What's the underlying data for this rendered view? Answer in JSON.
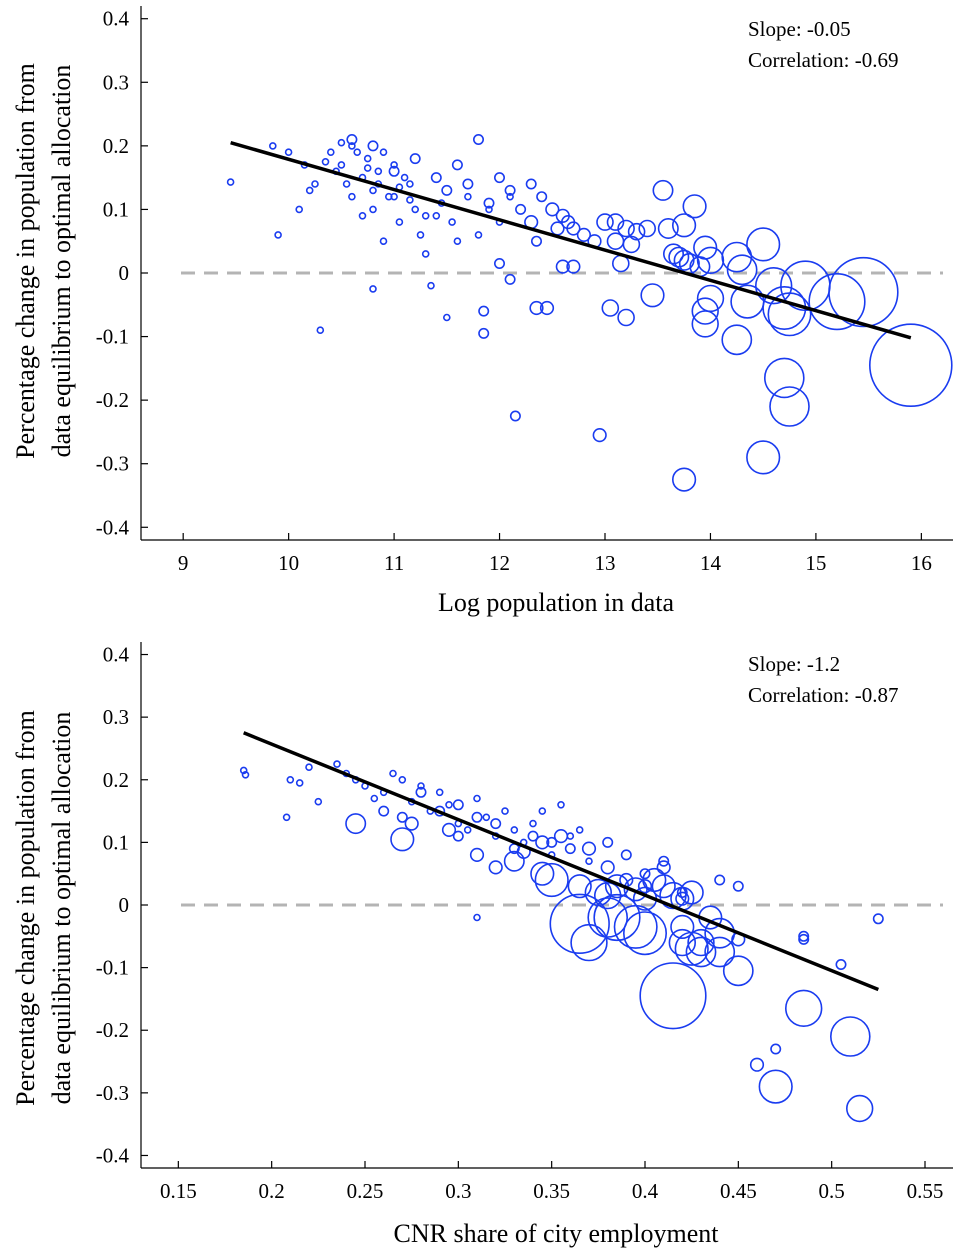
{
  "colors": {
    "points": "#1a3cf0",
    "fit": "#000000",
    "zero": "#b4b4b4"
  },
  "chart_data": [
    {
      "type": "scatter",
      "xlabel": "Log population in data",
      "ylabel_lines": [
        "Percentage change in population from",
        "data equilibrium to optimal allocation"
      ],
      "annotations": [
        "Slope: -0.05",
        "Correlation: -0.69"
      ],
      "xlim": [
        8.6,
        16.3
      ],
      "ylim": [
        -0.42,
        0.42
      ],
      "xticks": [
        9,
        10,
        11,
        12,
        13,
        14,
        15,
        16
      ],
      "xtick_labels": [
        "9",
        "10",
        "11",
        "12",
        "13",
        "14",
        "15",
        "16"
      ],
      "yticks": [
        0.4,
        0.3,
        0.2,
        0.1,
        0,
        -0.1,
        -0.2,
        -0.3,
        -0.4
      ],
      "ytick_labels": [
        "0.4",
        "0.3",
        "0.2",
        "0.1",
        "0",
        "-0.1",
        "-0.2",
        "-0.3",
        "-0.4"
      ],
      "reference_line_y": 0,
      "fit": {
        "x": [
          9.45,
          15.9
        ],
        "y": [
          0.205,
          -0.102
        ]
      },
      "points": [
        [
          9.45,
          0.143,
          1
        ],
        [
          9.9,
          0.06,
          1
        ],
        [
          10.3,
          -0.09,
          1
        ],
        [
          9.85,
          0.2,
          1
        ],
        [
          10.1,
          0.1,
          1
        ],
        [
          10.2,
          0.13,
          1
        ],
        [
          10.4,
          0.19,
          1
        ],
        [
          10.45,
          0.16,
          1
        ],
        [
          10.5,
          0.17,
          1
        ],
        [
          10.55,
          0.14,
          1
        ],
        [
          10.6,
          0.2,
          1
        ],
        [
          10.6,
          0.12,
          1
        ],
        [
          10.7,
          0.15,
          1
        ],
        [
          10.7,
          0.09,
          1
        ],
        [
          10.75,
          0.18,
          1
        ],
        [
          10.8,
          0.13,
          1
        ],
        [
          10.8,
          0.1,
          1
        ],
        [
          10.85,
          0.16,
          1
        ],
        [
          10.9,
          0.19,
          1
        ],
        [
          10.9,
          0.05,
          1
        ],
        [
          11.0,
          0.17,
          1
        ],
        [
          11.0,
          0.12,
          1
        ],
        [
          11.05,
          0.08,
          1
        ],
        [
          11.1,
          0.15,
          1
        ],
        [
          11.15,
          0.14,
          1
        ],
        [
          11.2,
          0.1,
          1
        ],
        [
          11.25,
          0.06,
          1
        ],
        [
          11.3,
          0.03,
          1
        ],
        [
          11.35,
          -0.02,
          1
        ],
        [
          11.4,
          0.09,
          1
        ],
        [
          10.8,
          -0.025,
          1
        ],
        [
          10.0,
          0.19,
          1
        ],
        [
          10.15,
          0.17,
          1
        ],
        [
          10.25,
          0.14,
          1
        ],
        [
          10.35,
          0.175,
          1
        ],
        [
          10.5,
          0.205,
          1
        ],
        [
          10.65,
          0.19,
          1
        ],
        [
          10.75,
          0.165,
          1
        ],
        [
          10.85,
          0.14,
          1
        ],
        [
          10.95,
          0.12,
          1
        ],
        [
          11.05,
          0.135,
          1
        ],
        [
          11.15,
          0.115,
          1
        ],
        [
          11.3,
          0.09,
          1
        ],
        [
          11.45,
          0.11,
          1
        ],
        [
          11.55,
          0.08,
          1
        ],
        [
          11.6,
          0.05,
          1
        ],
        [
          11.7,
          0.12,
          1
        ],
        [
          11.8,
          0.06,
          1
        ],
        [
          11.9,
          0.1,
          1
        ],
        [
          12.0,
          0.08,
          1
        ],
        [
          12.1,
          0.12,
          1
        ],
        [
          11.5,
          -0.07,
          1
        ],
        [
          10.6,
          0.21,
          2
        ],
        [
          10.8,
          0.2,
          2
        ],
        [
          11.0,
          0.16,
          2
        ],
        [
          11.2,
          0.18,
          2
        ],
        [
          11.4,
          0.15,
          2
        ],
        [
          11.5,
          0.13,
          2
        ],
        [
          11.6,
          0.17,
          2
        ],
        [
          11.7,
          0.14,
          2
        ],
        [
          11.8,
          0.21,
          2
        ],
        [
          11.9,
          0.11,
          2
        ],
        [
          12.0,
          0.15,
          2
        ],
        [
          12.1,
          0.13,
          2
        ],
        [
          12.2,
          0.1,
          2
        ],
        [
          12.3,
          0.14,
          2
        ],
        [
          11.85,
          -0.06,
          2
        ],
        [
          11.85,
          -0.095,
          2
        ],
        [
          12.0,
          0.015,
          2
        ],
        [
          12.1,
          -0.01,
          2
        ],
        [
          12.15,
          -0.225,
          2
        ],
        [
          12.35,
          0.05,
          2
        ],
        [
          12.4,
          0.12,
          2
        ],
        [
          12.3,
          0.08,
          3
        ],
        [
          12.5,
          0.1,
          3
        ],
        [
          12.55,
          0.07,
          3
        ],
        [
          12.6,
          0.09,
          3
        ],
        [
          12.65,
          0.08,
          3
        ],
        [
          12.7,
          0.07,
          3
        ],
        [
          12.6,
          0.01,
          3
        ],
        [
          12.7,
          0.01,
          3
        ],
        [
          12.35,
          -0.055,
          3
        ],
        [
          12.45,
          -0.055,
          3
        ],
        [
          12.8,
          0.06,
          3
        ],
        [
          12.9,
          0.05,
          3
        ],
        [
          12.95,
          -0.255,
          3
        ],
        [
          13.0,
          0.08,
          4
        ],
        [
          13.1,
          0.08,
          4
        ],
        [
          13.2,
          0.07,
          4
        ],
        [
          13.1,
          0.05,
          4
        ],
        [
          13.25,
          0.045,
          4
        ],
        [
          13.15,
          0.015,
          4
        ],
        [
          13.3,
          0.065,
          4
        ],
        [
          13.4,
          0.07,
          4
        ],
        [
          13.05,
          -0.055,
          4
        ],
        [
          13.2,
          -0.07,
          4
        ],
        [
          13.55,
          0.13,
          5
        ],
        [
          13.6,
          0.07,
          5
        ],
        [
          13.65,
          0.03,
          5
        ],
        [
          13.7,
          0.025,
          5
        ],
        [
          13.75,
          0.02,
          5
        ],
        [
          13.8,
          0.015,
          5
        ],
        [
          13.9,
          0.01,
          5
        ],
        [
          13.75,
          0.075,
          6
        ],
        [
          13.85,
          0.105,
          6
        ],
        [
          13.45,
          -0.035,
          6
        ],
        [
          13.95,
          0.04,
          6
        ],
        [
          13.75,
          -0.325,
          6
        ],
        [
          13.95,
          -0.06,
          7
        ],
        [
          14.0,
          -0.04,
          7
        ],
        [
          13.95,
          -0.08,
          7
        ],
        [
          14.0,
          0.02,
          7
        ],
        [
          14.25,
          0.025,
          8
        ],
        [
          14.3,
          0.005,
          8
        ],
        [
          14.25,
          -0.105,
          8
        ],
        [
          14.35,
          -0.045,
          9
        ],
        [
          14.5,
          0.045,
          9
        ],
        [
          14.5,
          -0.29,
          9
        ],
        [
          14.6,
          -0.02,
          10
        ],
        [
          14.7,
          -0.165,
          11
        ],
        [
          14.75,
          -0.21,
          11
        ],
        [
          14.7,
          -0.055,
          12
        ],
        [
          14.75,
          -0.065,
          12
        ],
        [
          14.9,
          -0.02,
          14
        ],
        [
          15.2,
          -0.045,
          16
        ],
        [
          15.45,
          -0.03,
          20
        ],
        [
          15.9,
          -0.145,
          24
        ]
      ]
    },
    {
      "type": "scatter",
      "xlabel": "CNR share of city employment",
      "ylabel_lines": [
        "Percentage change in population from",
        "data equilibrium to optimal allocation"
      ],
      "annotations": [
        "Slope: -1.2",
        "Correlation: -0.87"
      ],
      "xlim": [
        0.13,
        0.565
      ],
      "ylim": [
        -0.42,
        0.42
      ],
      "xticks": [
        0.15,
        0.2,
        0.25,
        0.3,
        0.35,
        0.4,
        0.45,
        0.5,
        0.55
      ],
      "xtick_labels": [
        "0.15",
        "0.2",
        "0.25",
        "0.3",
        "0.35",
        "0.4",
        "0.45",
        "0.5",
        "0.55"
      ],
      "yticks": [
        0.4,
        0.3,
        0.2,
        0.1,
        0,
        -0.1,
        -0.2,
        -0.3,
        -0.4
      ],
      "ytick_labels": [
        "0.4",
        "0.3",
        "0.2",
        "0.1",
        "0",
        "-0.1",
        "-0.2",
        "-0.3",
        "-0.4"
      ],
      "reference_line_y": 0,
      "fit": {
        "x": [
          0.185,
          0.525
        ],
        "y": [
          0.275,
          -0.135
        ]
      },
      "points": [
        [
          0.185,
          0.215,
          1
        ],
        [
          0.186,
          0.208,
          1
        ],
        [
          0.208,
          0.14,
          1
        ],
        [
          0.21,
          0.2,
          1
        ],
        [
          0.215,
          0.195,
          1
        ],
        [
          0.22,
          0.22,
          1
        ],
        [
          0.225,
          0.165,
          1
        ],
        [
          0.235,
          0.225,
          1
        ],
        [
          0.24,
          0.21,
          1
        ],
        [
          0.245,
          0.2,
          1
        ],
        [
          0.25,
          0.19,
          1
        ],
        [
          0.255,
          0.17,
          1
        ],
        [
          0.26,
          0.18,
          1
        ],
        [
          0.265,
          0.21,
          1
        ],
        [
          0.27,
          0.2,
          1
        ],
        [
          0.275,
          0.165,
          1
        ],
        [
          0.28,
          0.19,
          1
        ],
        [
          0.285,
          0.15,
          1
        ],
        [
          0.29,
          0.18,
          1
        ],
        [
          0.295,
          0.16,
          1
        ],
        [
          0.3,
          0.13,
          1
        ],
        [
          0.305,
          0.12,
          1
        ],
        [
          0.31,
          0.17,
          1
        ],
        [
          0.31,
          -0.02,
          1
        ],
        [
          0.315,
          0.14,
          1
        ],
        [
          0.32,
          0.11,
          1
        ],
        [
          0.325,
          0.15,
          1
        ],
        [
          0.33,
          0.12,
          1
        ],
        [
          0.335,
          0.1,
          1
        ],
        [
          0.34,
          0.13,
          1
        ],
        [
          0.345,
          0.15,
          1
        ],
        [
          0.35,
          0.08,
          1
        ],
        [
          0.355,
          0.16,
          1
        ],
        [
          0.36,
          0.11,
          1
        ],
        [
          0.365,
          0.12,
          1
        ],
        [
          0.37,
          0.07,
          1
        ],
        [
          0.26,
          0.15,
          2
        ],
        [
          0.27,
          0.14,
          2
        ],
        [
          0.28,
          0.18,
          2
        ],
        [
          0.29,
          0.15,
          2
        ],
        [
          0.3,
          0.16,
          2
        ],
        [
          0.3,
          0.11,
          2
        ],
        [
          0.31,
          0.14,
          2
        ],
        [
          0.32,
          0.13,
          2
        ],
        [
          0.33,
          0.09,
          2
        ],
        [
          0.34,
          0.11,
          2
        ],
        [
          0.35,
          0.1,
          2
        ],
        [
          0.36,
          0.09,
          2
        ],
        [
          0.38,
          0.1,
          2
        ],
        [
          0.39,
          0.08,
          2
        ],
        [
          0.4,
          0.05,
          2
        ],
        [
          0.41,
          0.07,
          2
        ],
        [
          0.42,
          0.02,
          2
        ],
        [
          0.44,
          0.04,
          2
        ],
        [
          0.45,
          0.03,
          2
        ],
        [
          0.47,
          -0.23,
          2
        ],
        [
          0.485,
          -0.05,
          2
        ],
        [
          0.485,
          -0.055,
          2
        ],
        [
          0.505,
          -0.095,
          2
        ],
        [
          0.525,
          -0.022,
          2
        ],
        [
          0.275,
          0.13,
          3
        ],
        [
          0.295,
          0.12,
          3
        ],
        [
          0.31,
          0.08,
          3
        ],
        [
          0.32,
          0.06,
          3
        ],
        [
          0.335,
          0.085,
          3
        ],
        [
          0.345,
          0.1,
          3
        ],
        [
          0.355,
          0.11,
          3
        ],
        [
          0.37,
          0.09,
          3
        ],
        [
          0.38,
          0.06,
          3
        ],
        [
          0.39,
          0.04,
          3
        ],
        [
          0.4,
          0.03,
          3
        ],
        [
          0.41,
          0.06,
          3
        ],
        [
          0.42,
          0.01,
          3
        ],
        [
          0.46,
          -0.255,
          3
        ],
        [
          0.45,
          -0.055,
          3
        ],
        [
          0.245,
          0.13,
          5
        ],
        [
          0.27,
          0.105,
          6
        ],
        [
          0.33,
          0.07,
          5
        ],
        [
          0.345,
          0.05,
          6
        ],
        [
          0.35,
          0.04,
          9
        ],
        [
          0.365,
          0.03,
          6
        ],
        [
          0.375,
          0.02,
          7
        ],
        [
          0.38,
          0.015,
          7
        ],
        [
          0.385,
          0.03,
          6
        ],
        [
          0.395,
          0.025,
          6
        ],
        [
          0.4,
          0.01,
          6
        ],
        [
          0.405,
          0.04,
          6
        ],
        [
          0.41,
          0.03,
          6
        ],
        [
          0.415,
          0.015,
          7
        ],
        [
          0.42,
          0.01,
          6
        ],
        [
          0.425,
          0.02,
          6
        ],
        [
          0.435,
          -0.02,
          6
        ],
        [
          0.42,
          -0.035,
          6
        ],
        [
          0.42,
          -0.06,
          7
        ],
        [
          0.43,
          -0.06,
          7
        ],
        [
          0.425,
          -0.07,
          9
        ],
        [
          0.43,
          -0.075,
          8
        ],
        [
          0.44,
          -0.045,
          8
        ],
        [
          0.44,
          -0.075,
          8
        ],
        [
          0.45,
          -0.105,
          8
        ],
        [
          0.365,
          -0.03,
          17
        ],
        [
          0.37,
          -0.06,
          10
        ],
        [
          0.38,
          -0.02,
          11
        ],
        [
          0.385,
          -0.02,
          13
        ],
        [
          0.395,
          -0.035,
          12
        ],
        [
          0.4,
          -0.045,
          12
        ],
        [
          0.415,
          -0.145,
          19
        ],
        [
          0.47,
          -0.29,
          9
        ],
        [
          0.485,
          -0.165,
          10
        ],
        [
          0.51,
          -0.21,
          11
        ],
        [
          0.515,
          -0.325,
          7
        ]
      ]
    }
  ]
}
